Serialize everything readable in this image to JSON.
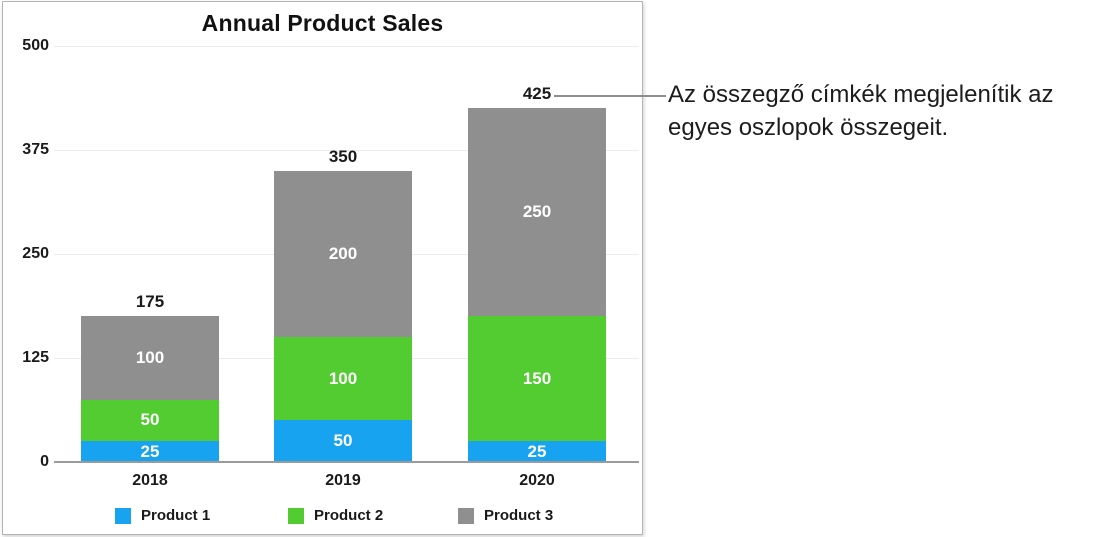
{
  "chart_data": {
    "type": "bar",
    "stacked": true,
    "title": "Annual Product Sales",
    "categories": [
      "2018",
      "2019",
      "2020"
    ],
    "series": [
      {
        "name": "Product 1",
        "color": "#18A3F0",
        "values": [
          25,
          50,
          25
        ]
      },
      {
        "name": "Product 2",
        "color": "#53CC32",
        "values": [
          50,
          100,
          150
        ]
      },
      {
        "name": "Product 3",
        "color": "#8F8F8F",
        "values": [
          100,
          200,
          250
        ]
      }
    ],
    "totals": [
      175,
      350,
      425
    ],
    "xlabel": "",
    "ylabel": "",
    "ylim": [
      0,
      500
    ],
    "yticks": [
      0,
      125,
      250,
      375,
      500
    ],
    "grid": true,
    "legend_position": "bottom",
    "legend": [
      "Product 1",
      "Product 2",
      "Product 3"
    ]
  },
  "annotation": {
    "text": "Az összegző címkék megjelenítik az egyes oszlopok összegeit.",
    "lines": [
      "Az összegző címkék megjelenítik az",
      "egyes oszlopok összegeit."
    ],
    "connects_to_label": "425",
    "line_color": "#8E8E8E"
  }
}
